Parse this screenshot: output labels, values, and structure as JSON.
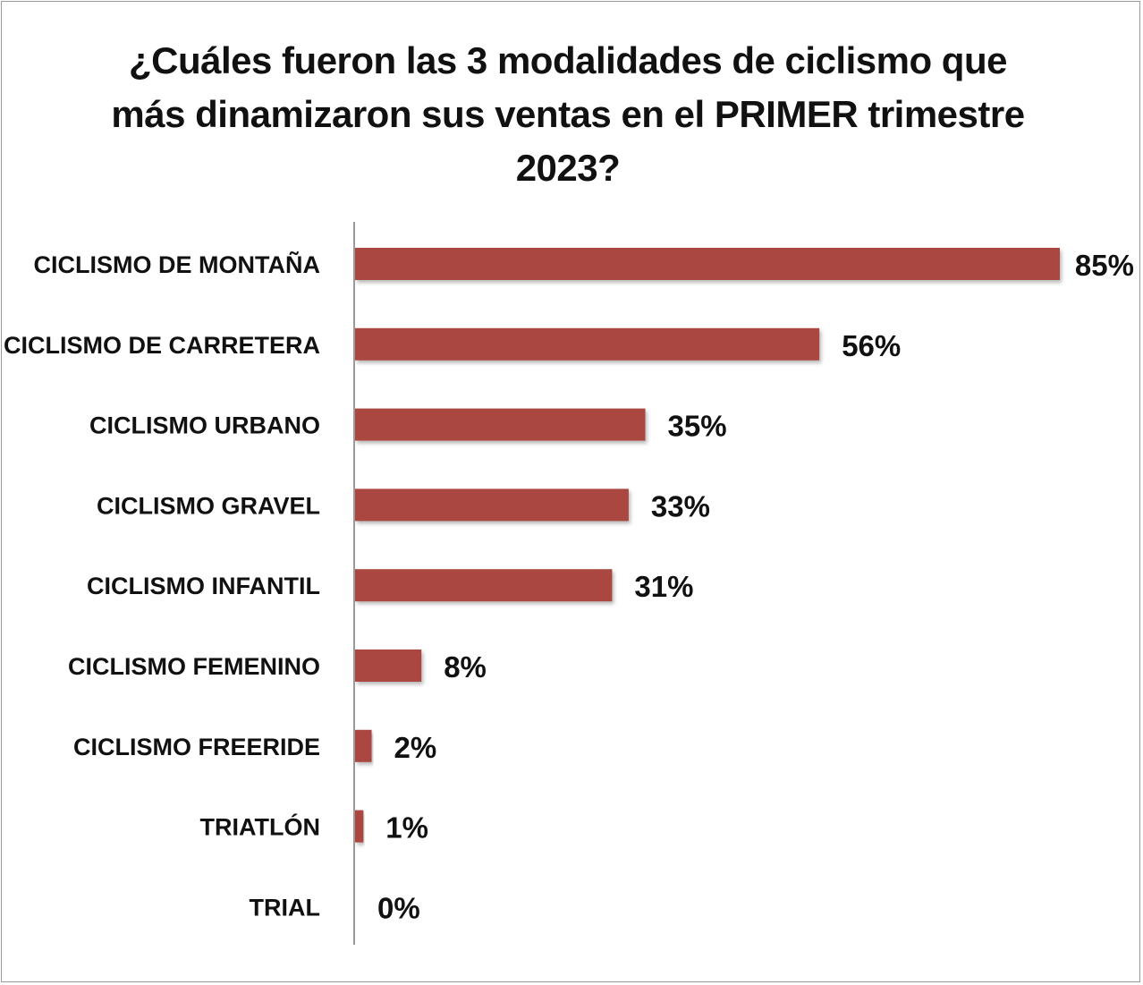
{
  "chart_data": {
    "type": "bar",
    "orientation": "horizontal",
    "title_lines": [
      "¿Cuáles fueron las 3 modalidades de ciclismo que",
      "más dinamizaron sus ventas en el PRIMER  trimestre",
      "2023?"
    ],
    "categories": [
      "CICLISMO DE MONTAÑA",
      "CICLISMO DE CARRETERA",
      "CICLISMO URBANO",
      "CICLISMO GRAVEL",
      "CICLISMO INFANTIL",
      "CICLISMO FEMENINO",
      "CICLISMO FREERIDE",
      "TRIATLÓN",
      "TRIAL"
    ],
    "values": [
      85,
      56,
      35,
      33,
      31,
      8,
      2,
      1,
      0
    ],
    "value_labels": [
      "85%",
      "56%",
      "35%",
      "33%",
      "31%",
      "8%",
      "2%",
      "1%",
      "0%"
    ],
    "unit": "%",
    "xlim": [
      0,
      85
    ],
    "grid": false,
    "legend": "none",
    "bar_color": "#a94741"
  }
}
